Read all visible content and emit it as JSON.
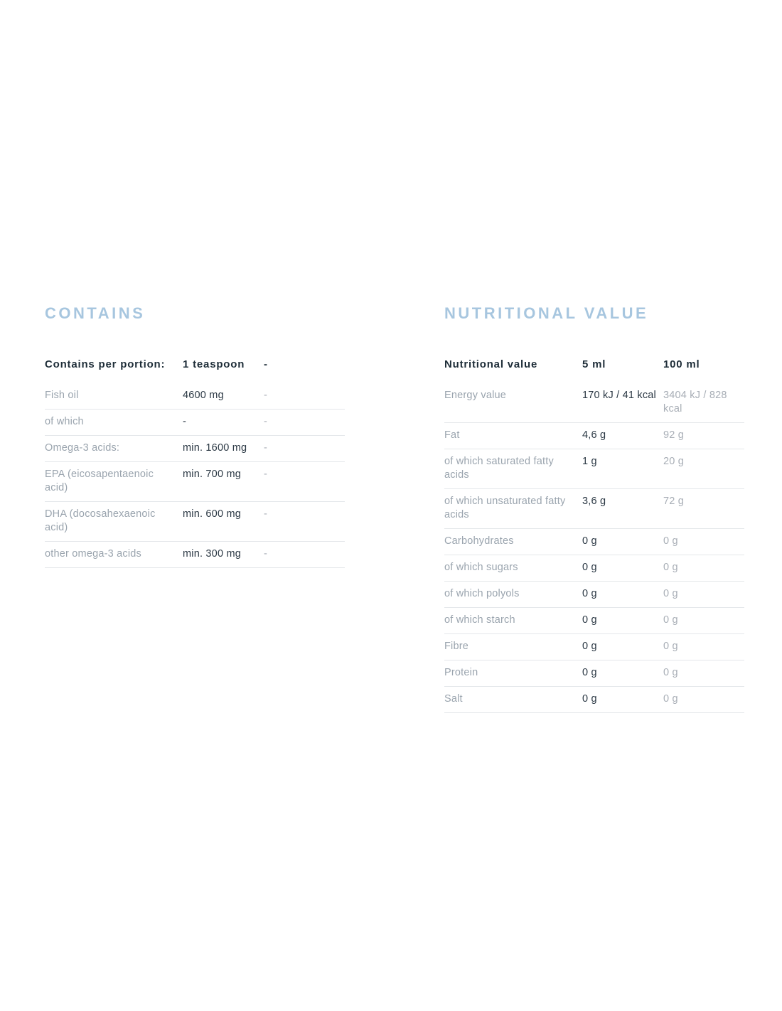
{
  "colors": {
    "accent_heading": "#a7c6df",
    "header_text": "#1e2d38",
    "label_text": "#9aa4ae",
    "value_text": "#2b3844",
    "muted_value_text": "#a8aeb6",
    "divider": "#e4e7ea",
    "page_background": "#ffffff"
  },
  "sections": [
    {
      "id": "contains",
      "title": "CONTAINS",
      "table": {
        "header": [
          "Contains per portion:",
          "1 teaspoon",
          "-"
        ],
        "rows": [
          [
            "Fish oil",
            "4600 mg",
            "-"
          ],
          [
            "of which",
            "-",
            "-"
          ],
          [
            "Omega-3 acids:",
            "min. 1600 mg",
            "-"
          ],
          [
            "EPA (eicosapentaenoic acid)",
            "min. 700 mg",
            "-"
          ],
          [
            "DHA (docosahexaenoic acid)",
            "min. 600 mg",
            "-"
          ],
          [
            "other omega-3 acids",
            "min. 300 mg",
            "-"
          ]
        ]
      }
    },
    {
      "id": "nutritional-value",
      "title": "NUTRITIONAL VALUE",
      "table": {
        "header": [
          "Nutritional value",
          "5 ml",
          "100 ml"
        ],
        "rows": [
          [
            "Energy value",
            "170 kJ / 41 kcal",
            "3404 kJ / 828 kcal"
          ],
          [
            "Fat",
            "4,6 g",
            "92 g"
          ],
          [
            "of which saturated fatty acids",
            "1 g",
            "20 g"
          ],
          [
            "of which unsaturated fatty acids",
            "3,6 g",
            "72 g"
          ],
          [
            "Carbohydrates",
            "0 g",
            "0 g"
          ],
          [
            "of which sugars",
            "0 g",
            "0 g"
          ],
          [
            "of which polyols",
            "0 g",
            "0 g"
          ],
          [
            "of which starch",
            "0 g",
            "0 g"
          ],
          [
            "Fibre",
            "0 g",
            "0 g"
          ],
          [
            "Protein",
            "0 g",
            "0 g"
          ],
          [
            "Salt",
            "0 g",
            "0 g"
          ]
        ]
      }
    }
  ]
}
